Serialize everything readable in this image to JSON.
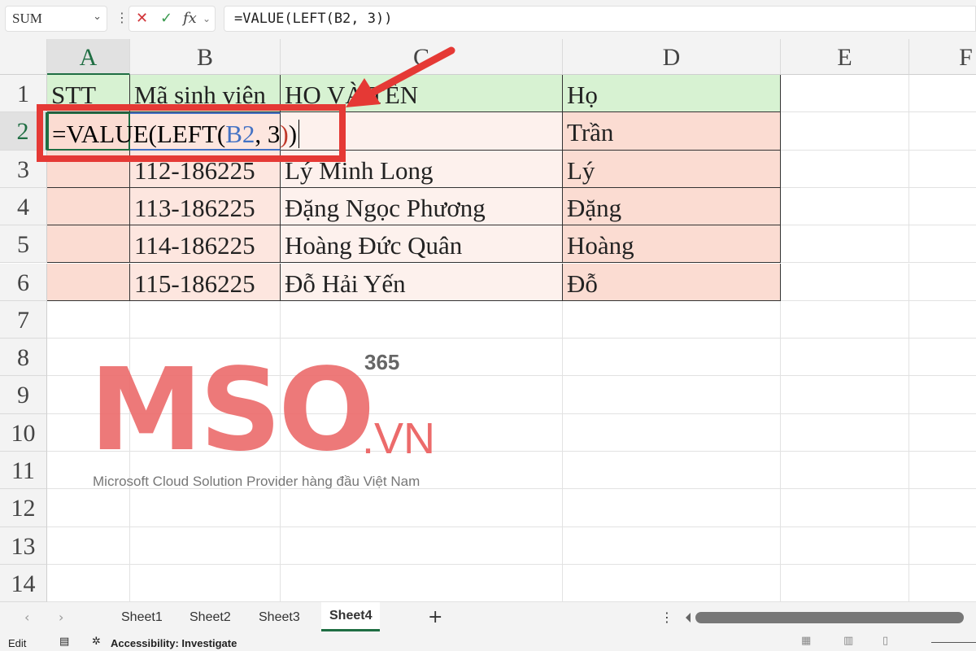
{
  "formula_bar": {
    "name_box": "SUM",
    "cancel_icon": "✕",
    "enter_icon": "✓",
    "fx_label": "fx",
    "formula": "=VALUE(LEFT(B2, 3))"
  },
  "columns": [
    "A",
    "B",
    "C",
    "D",
    "E",
    "F"
  ],
  "rows": [
    "1",
    "2",
    "3",
    "4",
    "5",
    "6",
    "7",
    "8",
    "9",
    "10",
    "11",
    "12",
    "13",
    "14"
  ],
  "table": {
    "header": [
      "STT",
      "Mã sinh viên",
      "HỌ VÀ TÊN",
      "Họ"
    ],
    "rows": [
      [
        "",
        "",
        "",
        "Trần"
      ],
      [
        "",
        "112-186225",
        "Lý Minh Long",
        "Lý"
      ],
      [
        "",
        "113-186225",
        "Đặng Ngọc Phương",
        "Đặng"
      ],
      [
        "",
        "114-186225",
        "Hoàng Đức Quân",
        "Hoàng"
      ],
      [
        "",
        "115-186225",
        "Đỗ Hải Yến",
        "Đỗ"
      ]
    ]
  },
  "edit_cell": {
    "prefix": "=VALUE(LEFT(",
    "ref": "B2",
    ",": ", 3",
    "close1": ")",
    "close2": ")"
  },
  "watermark": {
    "brand": "MSO",
    "suffix": ".VN",
    "badge": "365",
    "tagline": "Microsoft Cloud Solution Provider hàng đầu Việt Nam"
  },
  "sheets": [
    "Sheet1",
    "Sheet2",
    "Sheet3",
    "Sheet4"
  ],
  "active_sheet": "Sheet4",
  "status": {
    "mode": "Edit",
    "accessibility": "Accessibility: Investigate"
  },
  "colors": {
    "highlight": "#e53935",
    "header_green": "#d7f2d2",
    "row_salmon": "#fbdcd2",
    "accent": "#1f6e43"
  }
}
